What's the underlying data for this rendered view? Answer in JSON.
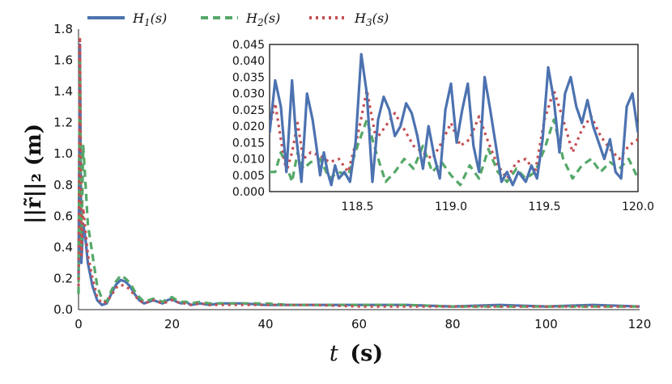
{
  "chart_data": [
    {
      "type": "line",
      "name": "main",
      "xlabel": "t (s)",
      "xlabel_var": "t",
      "xlabel_unit": "(s)",
      "ylabel": "||r̃||₂ (m)",
      "xlim": [
        0,
        120
      ],
      "ylim": [
        0,
        1.8
      ],
      "xticks": [
        0,
        20,
        40,
        60,
        80,
        100,
        120
      ],
      "yticks": [
        "0.0",
        "0.2",
        "0.4",
        "0.6",
        "0.8",
        "1.0",
        "1.2",
        "1.4",
        "1.6",
        "1.8"
      ],
      "legend": [
        "H1(s)",
        "H2(s)",
        "H3(s)"
      ],
      "series": [
        {
          "name": "H1(s)",
          "color": "#4c72b0",
          "style": "solid",
          "x": [
            0,
            0.3,
            0.6,
            1,
            1.5,
            2,
            3,
            4,
            5,
            6,
            7,
            8,
            9,
            10,
            11,
            12,
            13,
            14,
            15,
            16,
            17,
            18,
            19,
            20,
            21,
            22,
            23,
            24,
            26,
            28,
            30,
            35,
            40,
            45,
            50,
            60,
            70,
            80,
            90,
            100,
            110,
            120
          ],
          "y": [
            0.2,
            1.7,
            0.3,
            0.55,
            0.45,
            0.3,
            0.15,
            0.06,
            0.03,
            0.04,
            0.1,
            0.16,
            0.19,
            0.18,
            0.15,
            0.1,
            0.06,
            0.04,
            0.05,
            0.06,
            0.05,
            0.04,
            0.06,
            0.07,
            0.05,
            0.04,
            0.05,
            0.03,
            0.04,
            0.03,
            0.04,
            0.04,
            0.03,
            0.03,
            0.03,
            0.03,
            0.03,
            0.02,
            0.03,
            0.02,
            0.03,
            0.02
          ]
        },
        {
          "name": "H2(s)",
          "color": "#55a868",
          "style": "dashed",
          "x": [
            0,
            0.3,
            0.6,
            1,
            1.5,
            2,
            3,
            4,
            5,
            6,
            7,
            8,
            9,
            10,
            11,
            12,
            13,
            14,
            15,
            16,
            17,
            18,
            19,
            20,
            21,
            22,
            23,
            24,
            26,
            28,
            30,
            35,
            40,
            45,
            50,
            60,
            70,
            80,
            90,
            100,
            110,
            120
          ],
          "y": [
            0.1,
            1.6,
            0.4,
            1.05,
            0.8,
            0.55,
            0.35,
            0.15,
            0.07,
            0.05,
            0.12,
            0.18,
            0.22,
            0.2,
            0.17,
            0.12,
            0.08,
            0.05,
            0.06,
            0.07,
            0.06,
            0.05,
            0.07,
            0.08,
            0.06,
            0.05,
            0.05,
            0.04,
            0.05,
            0.04,
            0.04,
            0.04,
            0.04,
            0.03,
            0.03,
            0.03,
            0.03,
            0.02,
            0.02,
            0.02,
            0.02,
            0.02
          ]
        },
        {
          "name": "H3(s)",
          "color": "#c44e52",
          "style": "dotted",
          "x": [
            0,
            0.3,
            0.6,
            1,
            1.5,
            2,
            3,
            4,
            5,
            6,
            7,
            8,
            9,
            10,
            11,
            12,
            13,
            14,
            15,
            16,
            17,
            18,
            19,
            20,
            21,
            22,
            23,
            24,
            26,
            28,
            30,
            35,
            40,
            45,
            50,
            60,
            70,
            80,
            90,
            100,
            110,
            120
          ],
          "y": [
            0.15,
            1.75,
            0.35,
            0.65,
            0.5,
            0.35,
            0.2,
            0.08,
            0.04,
            0.05,
            0.09,
            0.14,
            0.16,
            0.15,
            0.13,
            0.09,
            0.06,
            0.04,
            0.05,
            0.06,
            0.05,
            0.04,
            0.05,
            0.06,
            0.05,
            0.04,
            0.04,
            0.03,
            0.04,
            0.03,
            0.03,
            0.03,
            0.03,
            0.03,
            0.03,
            0.02,
            0.02,
            0.02,
            0.02,
            0.02,
            0.02,
            0.02
          ]
        }
      ]
    },
    {
      "type": "line",
      "name": "inset",
      "xlim": [
        118.03,
        120.0
      ],
      "ylim": [
        0,
        0.045
      ],
      "xticks": [
        "118.5",
        "119.0",
        "119.5",
        "120.0"
      ],
      "yticks": [
        "0.000",
        "0.005",
        "0.010",
        "0.015",
        "0.020",
        "0.025",
        "0.030",
        "0.035",
        "0.040",
        "0.045"
      ],
      "series": [
        {
          "name": "H1(s)",
          "color": "#4c72b0",
          "style": "solid",
          "x": [
            118.03,
            118.06,
            118.09,
            118.12,
            118.15,
            118.17,
            118.2,
            118.23,
            118.26,
            118.28,
            118.3,
            118.32,
            118.34,
            118.36,
            118.38,
            118.4,
            118.43,
            118.46,
            118.49,
            118.52,
            118.55,
            118.58,
            118.61,
            118.64,
            118.67,
            118.7,
            118.73,
            118.76,
            118.79,
            118.82,
            118.85,
            118.88,
            118.91,
            118.94,
            118.97,
            119.0,
            119.03,
            119.06,
            119.09,
            119.12,
            119.15,
            119.18,
            119.21,
            119.24,
            119.27,
            119.3,
            119.33,
            119.36,
            119.4,
            119.43,
            119.46,
            119.49,
            119.52,
            119.55,
            119.58,
            119.61,
            119.64,
            119.67,
            119.7,
            119.73,
            119.76,
            119.79,
            119.82,
            119.85,
            119.88,
            119.91,
            119.94,
            119.97,
            120.0
          ],
          "y": [
            0.018,
            0.034,
            0.026,
            0.006,
            0.034,
            0.018,
            0.003,
            0.03,
            0.022,
            0.014,
            0.005,
            0.012,
            0.006,
            0.002,
            0.008,
            0.004,
            0.006,
            0.003,
            0.015,
            0.042,
            0.03,
            0.003,
            0.022,
            0.029,
            0.025,
            0.017,
            0.02,
            0.027,
            0.024,
            0.017,
            0.007,
            0.02,
            0.011,
            0.004,
            0.025,
            0.033,
            0.015,
            0.025,
            0.033,
            0.014,
            0.006,
            0.035,
            0.025,
            0.014,
            0.003,
            0.006,
            0.002,
            0.006,
            0.003,
            0.008,
            0.004,
            0.016,
            0.038,
            0.028,
            0.012,
            0.03,
            0.035,
            0.026,
            0.021,
            0.028,
            0.02,
            0.015,
            0.01,
            0.016,
            0.006,
            0.004,
            0.026,
            0.03,
            0.018
          ]
        },
        {
          "name": "H2(s)",
          "color": "#55a868",
          "style": "dashed",
          "x": [
            118.03,
            118.06,
            118.09,
            118.12,
            118.15,
            118.18,
            118.21,
            118.25,
            118.3,
            118.35,
            118.4,
            118.45,
            118.5,
            118.55,
            118.6,
            118.65,
            118.7,
            118.75,
            118.8,
            118.85,
            118.9,
            118.95,
            119.0,
            119.05,
            119.1,
            119.15,
            119.2,
            119.25,
            119.3,
            119.35,
            119.4,
            119.45,
            119.5,
            119.55,
            119.6,
            119.65,
            119.7,
            119.75,
            119.8,
            119.85,
            119.9,
            119.95,
            120.0
          ],
          "y": [
            0.006,
            0.006,
            0.012,
            0.008,
            0.003,
            0.012,
            0.007,
            0.009,
            0.01,
            0.004,
            0.006,
            0.005,
            0.014,
            0.022,
            0.012,
            0.003,
            0.006,
            0.01,
            0.007,
            0.014,
            0.006,
            0.009,
            0.005,
            0.002,
            0.008,
            0.004,
            0.013,
            0.006,
            0.003,
            0.007,
            0.004,
            0.006,
            0.013,
            0.022,
            0.01,
            0.004,
            0.008,
            0.01,
            0.006,
            0.009,
            0.007,
            0.01,
            0.004
          ]
        },
        {
          "name": "H3(s)",
          "color": "#c44e52",
          "style": "dotted",
          "x": [
            118.03,
            118.06,
            118.09,
            118.12,
            118.15,
            118.18,
            118.21,
            118.25,
            118.3,
            118.35,
            118.4,
            118.45,
            118.5,
            118.55,
            118.6,
            118.65,
            118.7,
            118.75,
            118.8,
            118.85,
            118.9,
            118.95,
            119.0,
            119.05,
            119.1,
            119.15,
            119.2,
            119.25,
            119.3,
            119.35,
            119.4,
            119.45,
            119.5,
            119.55,
            119.6,
            119.65,
            119.7,
            119.75,
            119.8,
            119.85,
            119.9,
            119.95,
            120.0
          ],
          "y": [
            0.02,
            0.027,
            0.016,
            0.006,
            0.012,
            0.021,
            0.01,
            0.012,
            0.011,
            0.009,
            0.01,
            0.006,
            0.017,
            0.031,
            0.016,
            0.02,
            0.024,
            0.019,
            0.014,
            0.012,
            0.01,
            0.015,
            0.021,
            0.014,
            0.016,
            0.023,
            0.015,
            0.008,
            0.004,
            0.009,
            0.01,
            0.006,
            0.022,
            0.031,
            0.022,
            0.012,
            0.019,
            0.023,
            0.017,
            0.013,
            0.01,
            0.014,
            0.016
          ]
        }
      ]
    }
  ]
}
